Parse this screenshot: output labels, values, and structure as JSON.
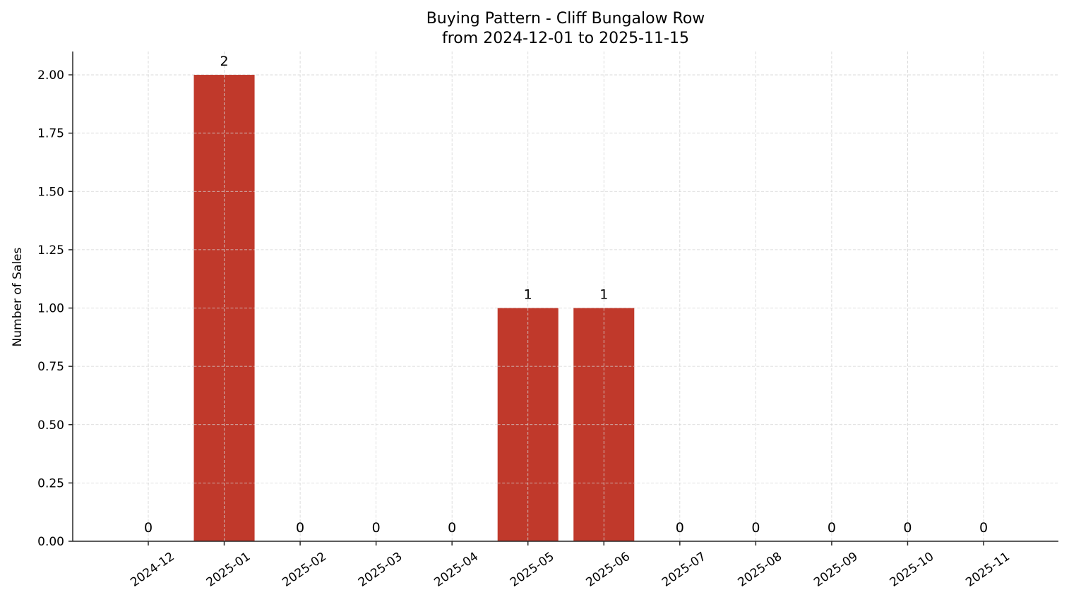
{
  "chart_data": {
    "type": "bar",
    "title": "Buying Pattern - Cliff Bungalow Row",
    "subtitle": "from 2024-12-01 to 2025-11-15",
    "xlabel": "",
    "ylabel": "Number of Sales",
    "categories": [
      "2024-12",
      "2025-01",
      "2025-02",
      "2025-03",
      "2025-04",
      "2025-05",
      "2025-06",
      "2025-07",
      "2025-08",
      "2025-09",
      "2025-10",
      "2025-11"
    ],
    "values": [
      0,
      2,
      0,
      0,
      0,
      1,
      1,
      0,
      0,
      0,
      0,
      0
    ],
    "bar_labels": [
      "0",
      "2",
      "0",
      "0",
      "0",
      "1",
      "1",
      "0",
      "0",
      "0",
      "0",
      "0"
    ],
    "ylim": [
      0,
      2.1
    ],
    "yticks": [
      0,
      0.25,
      0.5,
      0.75,
      1.0,
      1.25,
      1.5,
      1.75,
      2.0
    ],
    "ytick_labels": [
      "0.00",
      "0.25",
      "0.50",
      "0.75",
      "1.00",
      "1.25",
      "1.50",
      "1.75",
      "2.00"
    ],
    "xtick_rotation": -35,
    "grid": true,
    "legend": null,
    "colors": {
      "bar": "#c0392b",
      "grid": "#d3d3d3",
      "axis": "#262626"
    }
  }
}
